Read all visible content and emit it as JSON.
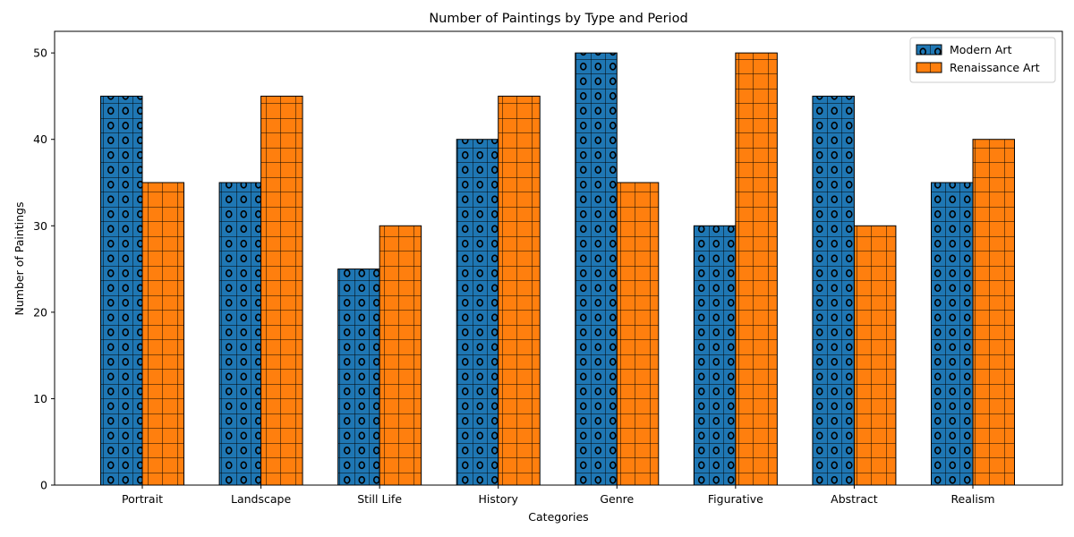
{
  "chart_data": {
    "type": "bar",
    "title": "Number of Paintings by Type and Period",
    "xlabel": "Categories",
    "ylabel": "Number of Paintings",
    "categories": [
      "Portrait",
      "Landscape",
      "Still Life",
      "History",
      "Genre",
      "Figurative",
      "Abstract",
      "Realism"
    ],
    "series": [
      {
        "name": "Modern Art",
        "values": [
          45,
          35,
          25,
          40,
          50,
          30,
          45,
          35
        ],
        "color": "#1f77b4",
        "hatch": "circles-grid"
      },
      {
        "name": "Renaissance Art",
        "values": [
          35,
          45,
          30,
          45,
          35,
          50,
          30,
          40
        ],
        "color": "#ff7f0e",
        "hatch": "grid"
      }
    ],
    "ylim": [
      0,
      52.5
    ],
    "yticks": [
      0,
      10,
      20,
      30,
      40,
      50
    ],
    "grid": false,
    "legend_position": "top-right"
  }
}
